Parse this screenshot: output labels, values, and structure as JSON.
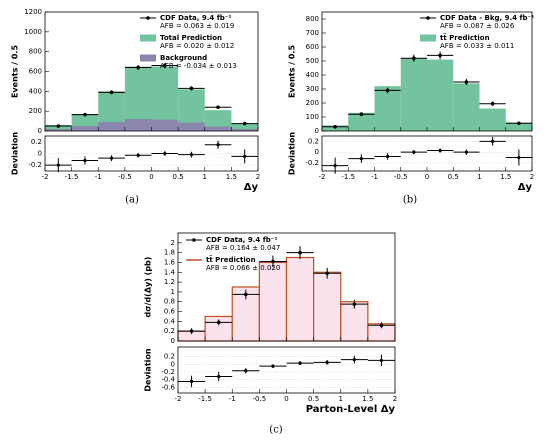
{
  "chart_data": [
    {
      "type": "histogram",
      "caption": "(a)",
      "ylabel": "Events / 0.5",
      "xlabel": "Δy",
      "bins": [
        -2,
        -1.5,
        -1,
        -0.5,
        0,
        0.5,
        1,
        1.5,
        2
      ],
      "xlim": [
        -2,
        2
      ],
      "xticks": [
        -2,
        -1.5,
        -1,
        -0.5,
        0,
        0.5,
        1,
        1.5,
        2
      ],
      "ylim": [
        0,
        1200
      ],
      "yticks": [
        0,
        200,
        400,
        600,
        800,
        1000,
        1200
      ],
      "series": [
        {
          "name": "Total Prediction",
          "note": "AFB = 0.020 ± 0.012",
          "style": "fill",
          "color": "#72c39e",
          "values": [
            60,
            170,
            400,
            650,
            650,
            420,
            210,
            70
          ]
        },
        {
          "name": "Background",
          "note": "AFB = -0.034 ± 0.013",
          "style": "fill",
          "color": "#8a86ad",
          "values": [
            20,
            50,
            90,
            120,
            115,
            85,
            45,
            20
          ]
        },
        {
          "name": "CDF Data, 9.4 fb⁻¹",
          "note": "AFB = 0.063 ± 0.019",
          "style": "points",
          "color": "#000000",
          "values": [
            50,
            165,
            390,
            640,
            660,
            430,
            240,
            75
          ],
          "errors": [
            7,
            13,
            20,
            25,
            26,
            21,
            15,
            9
          ]
        }
      ],
      "legend_order": [
        2,
        0,
        1
      ],
      "deviation": {
        "ylabel": "Deviation",
        "ylim": [
          -0.3,
          0.3
        ],
        "yticks": [
          -0.2,
          0,
          0.2
        ],
        "values": [
          -0.2,
          -0.12,
          -0.08,
          -0.03,
          0.0,
          -0.02,
          0.15,
          -0.05
        ],
        "errors": [
          0.12,
          0.07,
          0.05,
          0.04,
          0.04,
          0.05,
          0.07,
          0.12
        ]
      }
    },
    {
      "type": "histogram",
      "caption": "(b)",
      "ylabel": "Events / 0.5",
      "xlabel": "Δy",
      "bins": [
        -2,
        -1.5,
        -1,
        -0.5,
        0,
        0.5,
        1,
        1.5,
        2
      ],
      "xlim": [
        -2,
        2
      ],
      "xticks": [
        -2,
        -1.5,
        -1,
        -0.5,
        0,
        0.5,
        1,
        1.5,
        2
      ],
      "ylim": [
        0,
        850
      ],
      "yticks": [
        0,
        100,
        200,
        300,
        400,
        500,
        600,
        700,
        800
      ],
      "series": [
        {
          "name": "tt̄ Prediction",
          "note": "AFB = 0.033 ± 0.011",
          "style": "fill",
          "color": "#72c39e",
          "values": [
            40,
            130,
            320,
            520,
            510,
            340,
            160,
            60
          ]
        },
        {
          "name": "CDF Data - Bkg, 9.4 fb⁻¹",
          "note": "AFB = 0.087 ± 0.026",
          "style": "points",
          "color": "#000000",
          "values": [
            30,
            120,
            290,
            520,
            540,
            350,
            195,
            55
          ],
          "errors": [
            8,
            14,
            20,
            26,
            27,
            22,
            16,
            10
          ]
        }
      ],
      "legend_order": [
        1,
        0
      ],
      "deviation": {
        "ylabel": "Deviation",
        "ylim": [
          -0.35,
          0.3
        ],
        "yticks": [
          -0.2,
          0,
          0.2
        ],
        "values": [
          -0.25,
          -0.12,
          -0.08,
          0.0,
          0.03,
          0.0,
          0.2,
          -0.1
        ],
        "errors": [
          0.15,
          0.08,
          0.06,
          0.04,
          0.04,
          0.05,
          0.08,
          0.15
        ]
      }
    },
    {
      "type": "histogram",
      "caption": "(c)",
      "ylabel": "dσ/d(Δy) (pb)",
      "xlabel": "Parton-Level Δy",
      "bins": [
        -2,
        -1.5,
        -1,
        -0.5,
        0,
        0.5,
        1,
        1.5,
        2
      ],
      "xlim": [
        -2,
        2
      ],
      "xticks": [
        -2,
        -1.5,
        -1,
        -0.5,
        0,
        0.5,
        1,
        1.5,
        2
      ],
      "ylim": [
        0,
        2.2
      ],
      "yticks": [
        0,
        0.2,
        0.4,
        0.6,
        0.8,
        1,
        1.2,
        1.4,
        1.6,
        1.8,
        2
      ],
      "series": [
        {
          "name": "tt̄ Prediction",
          "note": "AFB = 0.066 ± 0.020",
          "style": "step",
          "color": "#c0501e",
          "values": [
            0.2,
            0.5,
            1.1,
            1.6,
            1.7,
            1.4,
            0.8,
            0.35
          ]
        },
        {
          "name": "CDF Data, 9.4 fb⁻¹",
          "note": "AFB = 0.164 ± 0.047",
          "style": "points",
          "color": "#000000",
          "values": [
            0.2,
            0.38,
            0.95,
            1.62,
            1.8,
            1.38,
            0.75,
            0.32
          ],
          "errors": [
            0.06,
            0.06,
            0.1,
            0.12,
            0.13,
            0.11,
            0.09,
            0.06
          ]
        }
      ],
      "legend_order": [
        1,
        0
      ],
      "deviation": {
        "ylabel": "Deviation",
        "ylim": [
          -0.75,
          0.45
        ],
        "yticks": [
          -0.6,
          -0.4,
          -0.2,
          0,
          0.2
        ],
        "values": [
          -0.45,
          -0.32,
          -0.17,
          -0.05,
          0.03,
          0.05,
          0.12,
          0.1
        ],
        "errors": [
          0.15,
          0.12,
          0.07,
          0.05,
          0.05,
          0.06,
          0.1,
          0.15
        ]
      }
    }
  ]
}
